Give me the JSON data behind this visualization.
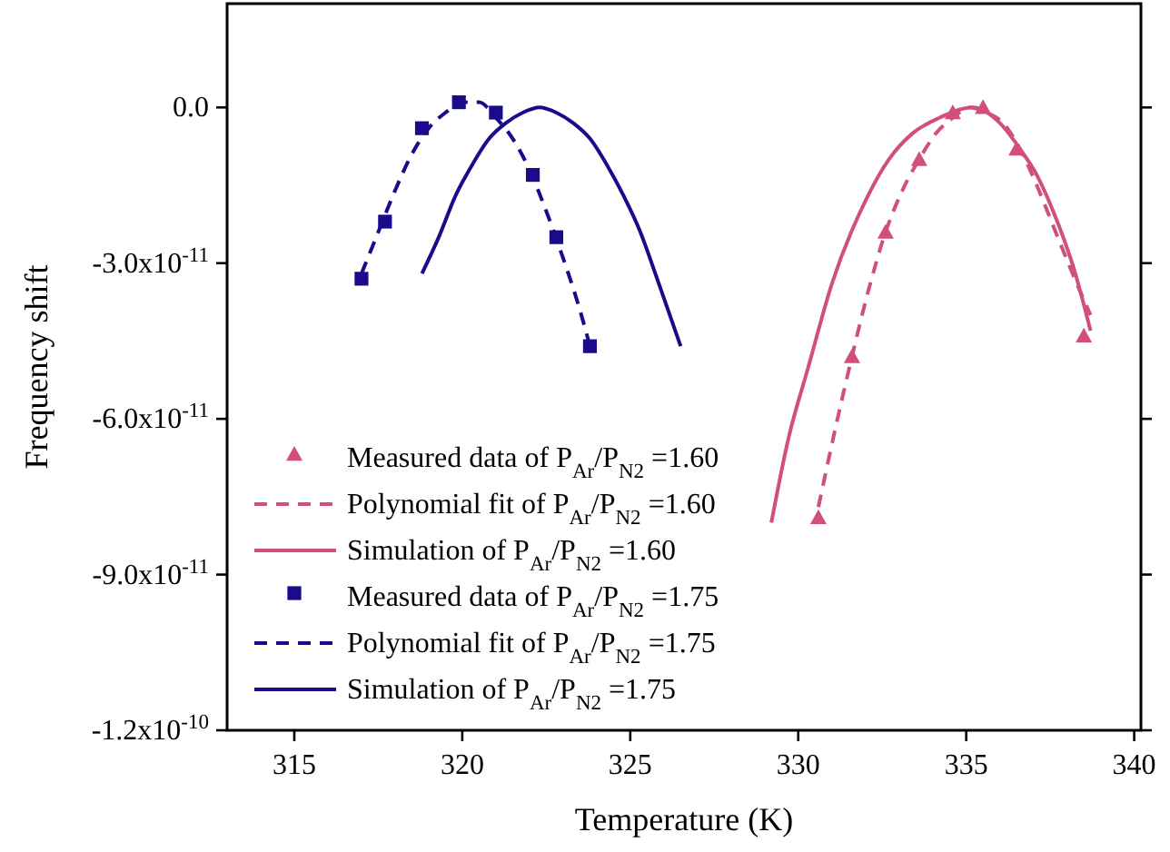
{
  "chart_data": {
    "type": "line",
    "xlabel": "Temperature (K)",
    "ylabel": "Frequency shift",
    "xlim": [
      313,
      340.2
    ],
    "xticks": [
      315,
      320,
      325,
      330,
      335,
      340
    ],
    "ylim": [
      -1.2e-10,
      2e-11
    ],
    "yticks": [
      {
        "value": 0,
        "label": "0.0"
      },
      {
        "value": -3e-11,
        "label": "-3.0x10$^{-11}$"
      },
      {
        "value": -6e-11,
        "label": "-6.0x10$^{-11}$"
      },
      {
        "value": -9e-11,
        "label": "-9.0x10$^{-11}$"
      },
      {
        "value": -1.2e-10,
        "label": "-1.2x10$^{-10}$"
      }
    ],
    "grid": false,
    "legend": "bottom left",
    "series": [
      {
        "name": "Measured data of P$_{Ar}$/P$_{N2}$ =1.60",
        "type": "scatter",
        "marker": "triangle",
        "color": "#d0507a",
        "x": [
          330.6,
          331.6,
          332.6,
          333.6,
          334.6,
          335.5,
          336.5,
          338.5
        ],
        "values": [
          -7.9e-11,
          -4.8e-11,
          -2.4e-11,
          -1e-11,
          -1e-12,
          0,
          -8e-12,
          -4.4e-11
        ]
      },
      {
        "name": "Polynomial fit of P$_{Ar}$/P$_{N2}$ =1.60",
        "line_style": "dashed",
        "color": "#d0507a",
        "x": [
          330.6,
          331.1,
          331.6,
          332.1,
          332.6,
          333.1,
          333.6,
          334.1,
          334.6,
          335.1,
          335.6,
          336.1,
          336.6,
          337.1,
          337.6,
          338.1,
          338.7
        ],
        "values": [
          -7.7e-11,
          -6.2e-11,
          -4.8e-11,
          -3.5e-11,
          -2.4e-11,
          -1.6e-11,
          -1e-11,
          -5e-12,
          -2e-12,
          0,
          -1e-12,
          -3e-12,
          -8e-12,
          -1.5e-11,
          -2.3e-11,
          -3.1e-11,
          -4e-11
        ]
      },
      {
        "name": "Simulation of P$_{Ar}$/P$_{N2}$ =1.60",
        "line_style": "solid",
        "color": "#d0507a",
        "x": [
          329.2,
          329.7,
          330.3,
          331.0,
          332.0,
          332.7,
          333.4,
          334.2,
          335.2,
          336.0,
          336.6,
          337.1,
          337.65,
          338.2,
          338.7
        ],
        "values": [
          -8e-11,
          -6.4e-11,
          -5e-11,
          -3.4e-11,
          -1.8e-11,
          -1e-11,
          -5e-12,
          -2e-12,
          0,
          -3e-12,
          -8e-12,
          -1.3e-11,
          -2.1e-11,
          -3.1e-11,
          -4.3e-11
        ]
      },
      {
        "name": "Measured data of P$_{Ar}$/P$_{N2}$ =1.75",
        "type": "scatter",
        "marker": "square",
        "color": "#1a0a8c",
        "x": [
          317.0,
          317.7,
          318.8,
          319.9,
          321.0,
          322.1,
          322.8,
          323.8
        ],
        "values": [
          -3.3e-11,
          -2.2e-11,
          -4e-12,
          1e-12,
          -1e-12,
          -1.3e-11,
          -2.5e-11,
          -4.6e-11
        ]
      },
      {
        "name": "Polynomial fit of P$_{Ar}$/P$_{N2}$ =1.75",
        "line_style": "dashed",
        "color": "#1a0a8c",
        "x": [
          317.0,
          317.5,
          318.0,
          318.5,
          319.0,
          319.5,
          320.0,
          320.5,
          321.0,
          321.5,
          322.0,
          322.5,
          323.0,
          323.5,
          323.8
        ],
        "values": [
          -3.2e-11,
          -2.4e-11,
          -1.6e-11,
          -9e-12,
          -4e-12,
          -1e-12,
          1e-12,
          1e-12,
          -2e-12,
          -6e-12,
          -1.2e-11,
          -2e-11,
          -2.9e-11,
          -3.9e-11,
          -4.6e-11
        ]
      },
      {
        "name": "Simulation of P$_{Ar}$/P$_{N2}$ =1.75",
        "line_style": "solid",
        "color": "#1a0a8c",
        "x": [
          318.8,
          319.3,
          319.8,
          320.3,
          320.8,
          321.3,
          321.8,
          322.3,
          322.8,
          323.3,
          323.8,
          324.3,
          324.8,
          325.3,
          325.8,
          326.5
        ],
        "values": [
          -3.2e-11,
          -2.5e-11,
          -1.7e-11,
          -1.1e-11,
          -6e-12,
          -3e-12,
          -1e-12,
          0,
          -1e-12,
          -3e-12,
          -6e-12,
          -1.1e-11,
          -1.7e-11,
          -2.4e-11,
          -3.3e-11,
          -4.6e-11
        ]
      }
    ]
  }
}
